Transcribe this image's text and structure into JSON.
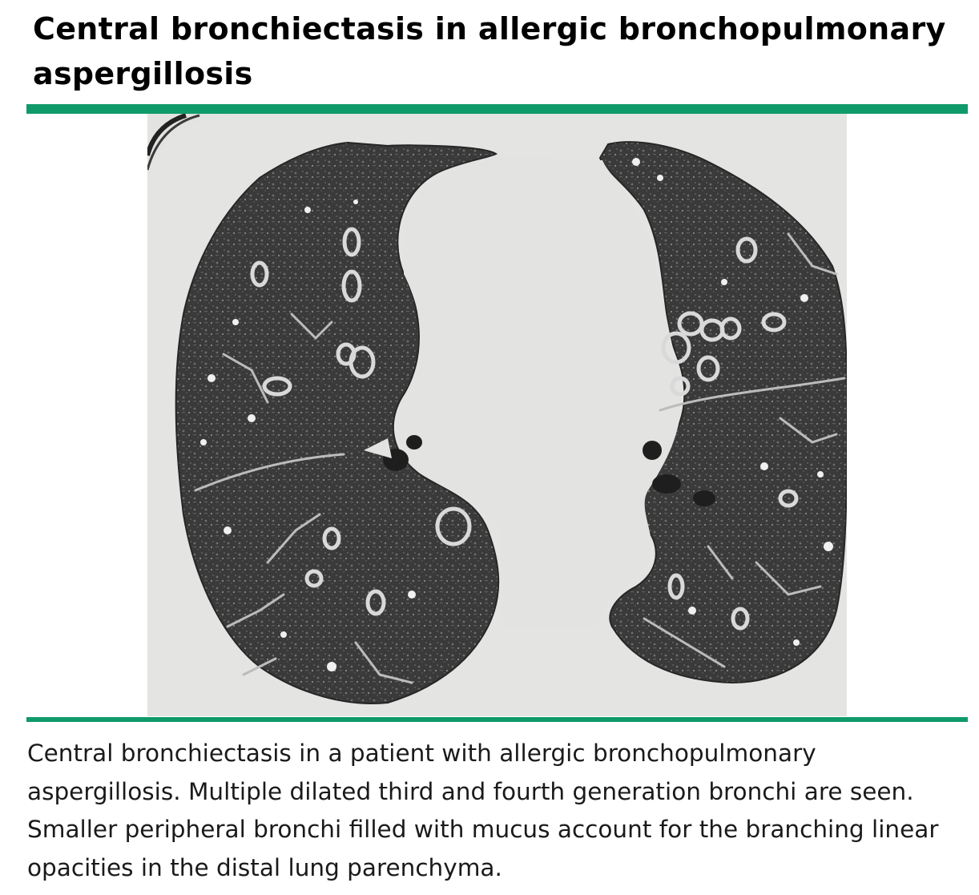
{
  "figure": {
    "title": "Central bronchiectasis in allergic bronchopulmonary aspergillosis",
    "caption": "Central bronchiectasis in a patient with allergic bronchopulmonary aspergillosis. Multiple dilated third and fourth generation bronchi are seen. Smaller peripheral bronchi filled with mucus account for the branching linear opacities in the distal lung parenchyma.",
    "accent_color": "#0f9a6a",
    "image": {
      "kind": "axial chest CT scan, lung window",
      "background_color": "#e3e3e1",
      "lung_color": "#3c3c3c",
      "airway_color": "#202020"
    }
  }
}
